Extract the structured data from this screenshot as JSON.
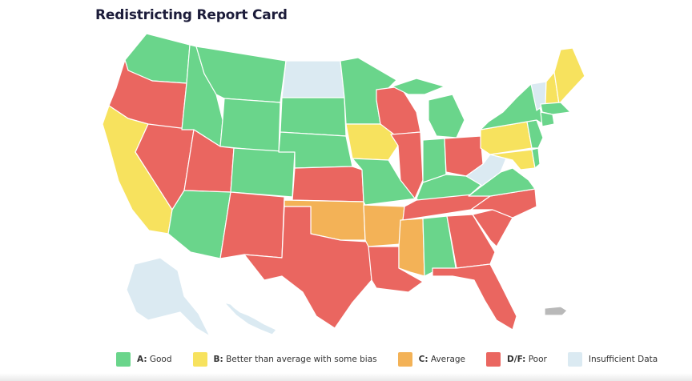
{
  "title": "Redistricting Report Card",
  "colors": {
    "good": "#6ad58b",
    "better": "#f7e25e",
    "average": "#f3b257",
    "poor": "#ea6660",
    "insufficient": "#dbeaf2",
    "territory": "#b9b9b9"
  },
  "legend": [
    {
      "key": "A:",
      "label": "Good",
      "color": "#6ad58b"
    },
    {
      "key": "B:",
      "label": "Better than average with some bias",
      "color": "#f7e25e"
    },
    {
      "key": "C:",
      "label": "Average",
      "color": "#f3b257"
    },
    {
      "key": "D/F:",
      "label": "Poor",
      "color": "#ea6660"
    },
    {
      "key": "",
      "label": "Insufficient Data",
      "color": "#dbeaf2"
    }
  ],
  "grades": {
    "washington": "good",
    "oregon": "poor",
    "california": "better",
    "nevada": "poor",
    "idaho": "good",
    "montana": "good",
    "wyoming": "good",
    "utah": "poor",
    "arizona": "good",
    "colorado": "good",
    "new-mexico": "poor",
    "north-dakota": "insufficient",
    "south-dakota": "good",
    "nebraska": "good",
    "kansas": "poor",
    "oklahoma": "average",
    "texas": "poor",
    "minnesota": "good",
    "iowa": "better",
    "missouri": "good",
    "arkansas": "average",
    "louisiana": "poor",
    "wisconsin": "poor",
    "illinois": "poor",
    "michigan": "good",
    "indiana": "good",
    "ohio": "poor",
    "kentucky": "good",
    "tennessee": "poor",
    "mississippi": "average",
    "alabama": "good",
    "georgia": "poor",
    "florida": "poor",
    "south-carolina": "poor",
    "north-carolina": "poor",
    "virginia": "good",
    "west-virginia": "insufficient",
    "pennsylvania": "better",
    "new-york": "good",
    "maryland": "better",
    "new-jersey": "good",
    "maine": "better",
    "vermont": "insufficient",
    "new-hampshire": "better",
    "massachusetts": "good",
    "connecticut": "good",
    "delaware": "good",
    "alaska": "insufficient",
    "hawaii": "insufficient",
    "puerto-rico": "territory"
  }
}
